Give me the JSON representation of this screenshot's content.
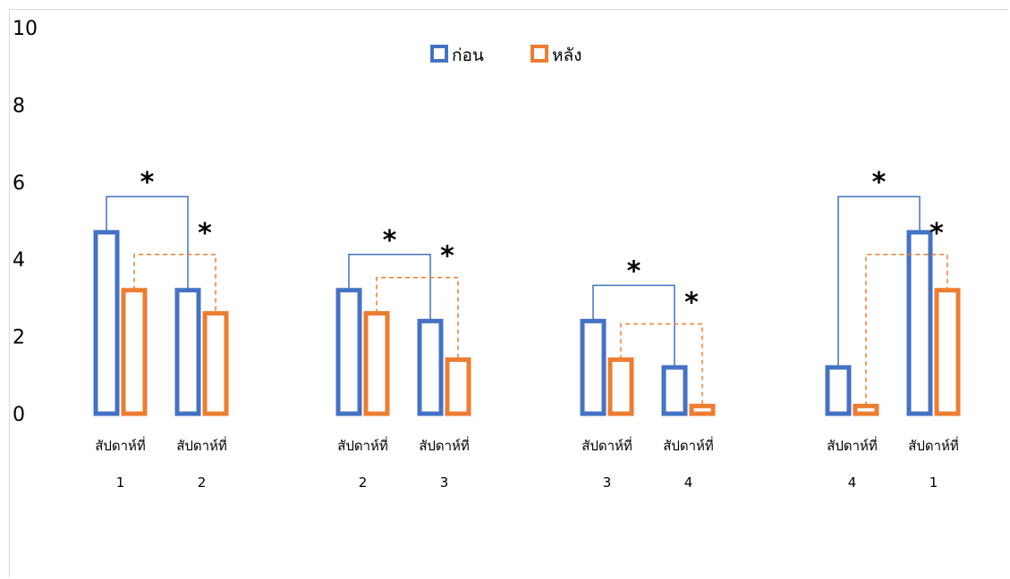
{
  "chart_data": {
    "type": "bar",
    "ylim": [
      0,
      10
    ],
    "yticks": [
      "0",
      "2",
      "4",
      "6",
      "8",
      "10"
    ],
    "grid": false,
    "legend_position": "top-center",
    "colors": {
      "before": "#4472C4",
      "after": "#ED7D31"
    },
    "series_names": [
      "ก่อน",
      "หลัง"
    ],
    "groups": [
      {
        "bars": [
          {
            "line1": "สัปดาห์ที่",
            "line2": "1",
            "before": 4.7,
            "after": 3.2
          },
          {
            "line1": "สัปดาห์ที่",
            "line2": "2",
            "before": 3.2,
            "after": 2.6
          }
        ],
        "annotations": [
          "*",
          "*"
        ]
      },
      {
        "bars": [
          {
            "line1": "สัปดาห์ที่",
            "line2": "2",
            "before": 3.2,
            "after": 2.6
          },
          {
            "line1": "สัปดาห์ที่",
            "line2": "3",
            "before": 2.4,
            "after": 1.4
          }
        ],
        "annotations": [
          "*",
          "*"
        ]
      },
      {
        "bars": [
          {
            "line1": "สัปดาห์ที่",
            "line2": "3",
            "before": 2.4,
            "after": 1.4
          },
          {
            "line1": "สัปดาห์ที่",
            "line2": "4",
            "before": 1.2,
            "after": 0.2
          }
        ],
        "annotations": [
          "*",
          "*"
        ]
      },
      {
        "bars": [
          {
            "line1": "สัปดาห์ที่",
            "line2": "4",
            "before": 1.2,
            "after": 0.2
          },
          {
            "line1": "สัปดาห์ที่",
            "line2": "1",
            "before": 4.7,
            "after": 3.2
          }
        ],
        "annotations": [
          "*",
          "*"
        ]
      }
    ]
  }
}
